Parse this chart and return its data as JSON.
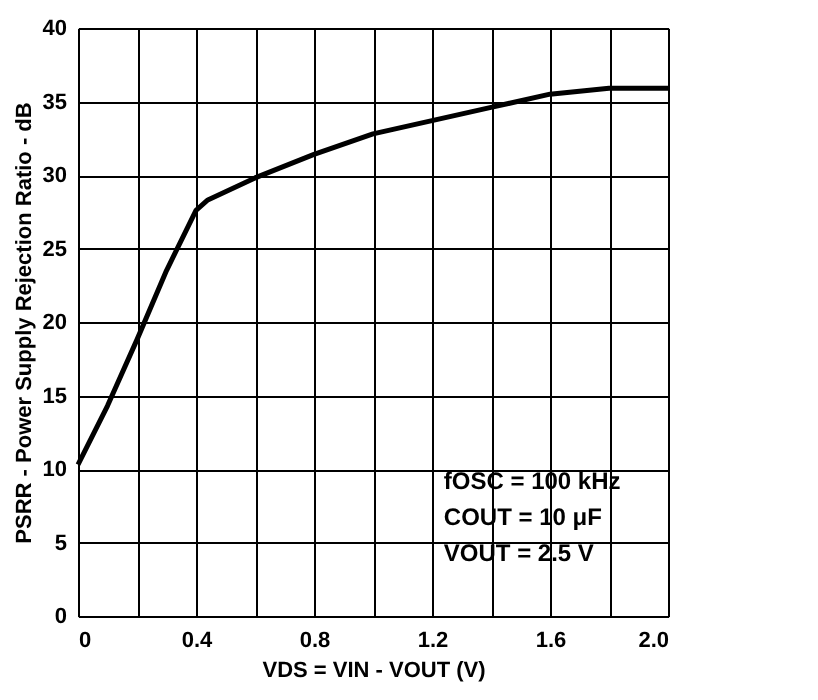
{
  "chart_data": {
    "type": "line",
    "xlabel": "VDS = VIN - VOUT  (V)",
    "ylabel": "PSRR - Power Supply Rejection Ratio - dB",
    "x": [
      0,
      0.1,
      0.2,
      0.3,
      0.4,
      0.44,
      0.6,
      0.8,
      1.0,
      1.2,
      1.4,
      1.6,
      1.8,
      2.0
    ],
    "series": [
      {
        "color": "#000000",
        "values": [
          10.3,
          14.3,
          18.8,
          23.5,
          27.6,
          28.3,
          29.8,
          31.4,
          32.8,
          33.7,
          34.6,
          35.5,
          35.9,
          35.9
        ]
      }
    ],
    "xlim": [
      0,
      2.0
    ],
    "ylim": [
      0,
      40
    ],
    "xticks": [
      0,
      {
        "value": 0.2,
        "label": null
      },
      0.4,
      {
        "value": 0.6,
        "label": null
      },
      0.8,
      {
        "value": 1.0,
        "label": null
      },
      1.2,
      {
        "value": 1.4,
        "label": null
      },
      1.6,
      {
        "value": 1.8,
        "label": null
      },
      {
        "value": 2.0,
        "label": "2.0"
      }
    ],
    "yticks": [
      0,
      5,
      10,
      15,
      20,
      25,
      30,
      35,
      40
    ],
    "grid": true,
    "marker": "none",
    "line_style": "solid",
    "annotations": [
      {
        "text": "fOSC = 100 kHz"
      },
      {
        "text": "COUT = 10 μF"
      },
      {
        "text": "VOUT = 2.5 V"
      }
    ]
  }
}
